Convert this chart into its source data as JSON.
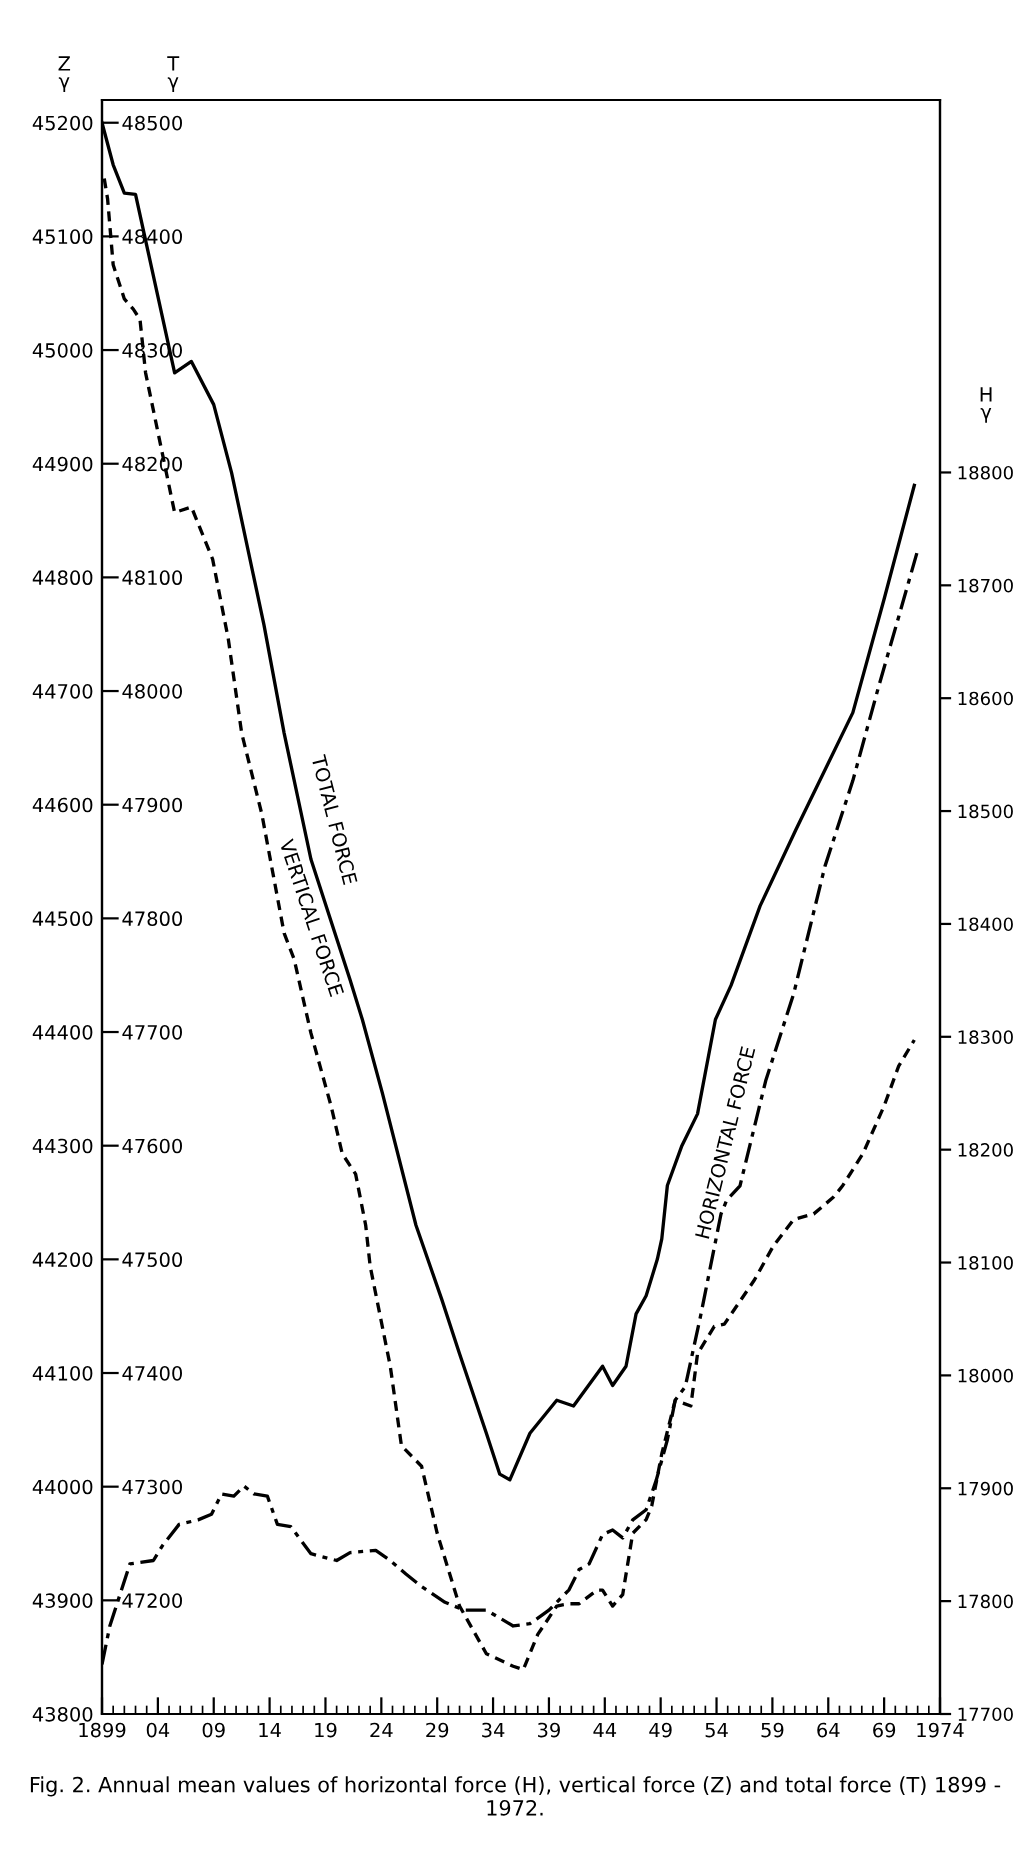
{
  "chart_data": {
    "type": "line",
    "title": "Fig. 2. Annual mean values of horizontal force (H), vertical force (Z) and total force (T) 1899 - 1972.",
    "ylabel": "Z\nγ",
    "y2label": "T\nγ",
    "y3label": "H\nγ",
    "xlim": [
      1899,
      1974
    ],
    "xticks": [
      {
        "value": 1899,
        "label": "1899"
      },
      {
        "value": 1904,
        "label": "04"
      },
      {
        "value": 1909,
        "label": "09"
      },
      {
        "value": 1914,
        "label": "14"
      },
      {
        "value": 1919,
        "label": "19"
      },
      {
        "value": 1924,
        "label": "24"
      },
      {
        "value": 1929,
        "label": "29"
      },
      {
        "value": 1934,
        "label": "34"
      },
      {
        "value": 1939,
        "label": "39"
      },
      {
        "value": 1944,
        "label": "44"
      },
      {
        "value": 1949,
        "label": "49"
      },
      {
        "value": 1954,
        "label": "54"
      },
      {
        "value": 1959,
        "label": "59"
      },
      {
        "value": 1964,
        "label": "64"
      },
      {
        "value": 1969,
        "label": "69"
      },
      {
        "value": 1974,
        "label": "1974"
      }
    ],
    "ylim": [
      43800,
      45220
    ],
    "yticks": [
      43800,
      43900,
      44000,
      44100,
      44200,
      44300,
      44400,
      44500,
      44600,
      44700,
      44800,
      44900,
      45000,
      45100,
      45200
    ],
    "y2lim": [
      47100,
      48520
    ],
    "y2ticks": [
      47200,
      47300,
      47400,
      47500,
      47600,
      47700,
      47800,
      47900,
      48000,
      48100,
      48200,
      48300,
      48400,
      48500
    ],
    "y3lim": [
      17700,
      19130
    ],
    "y3ticks": [
      17700,
      17800,
      17900,
      18000,
      18100,
      18200,
      18300,
      18400,
      18500,
      18600,
      18700,
      18800
    ],
    "grid": false,
    "legend": false,
    "marker": "none",
    "series": [
      {
        "name": "TOTAL FORCE",
        "axis": "y2",
        "color": "#000000",
        "line_style": "solid",
        "x": [
          1899,
          1900,
          1901,
          1902,
          1905.5,
          1907,
          1909,
          1910.6,
          1913.5,
          1915.3,
          1917.7,
          1921.2,
          1922.3,
          1924.1,
          1927.1,
          1929.4,
          1931,
          1933.4,
          1934.6,
          1935.5,
          1937.3,
          1939.7,
          1941.2,
          1943.8,
          1944.7,
          1945.9,
          1946.8,
          1947.7,
          1948.7,
          1949.1,
          1949.6,
          1950.9,
          1952.3,
          1953.9,
          1955.3,
          1957.9,
          1961.1,
          1966.2,
          1969,
          1971.7
        ],
        "values": [
          48500,
          48463,
          48438,
          48437,
          48280,
          48290,
          48252,
          48192,
          48058,
          47963,
          47852,
          47746,
          47711,
          47646,
          47530,
          47465,
          47417,
          47347,
          47311,
          47306,
          47347,
          47376,
          47371,
          47406,
          47389,
          47406,
          47452,
          47468,
          47500,
          47518,
          47565,
          47600,
          47628,
          47711,
          47741,
          47811,
          47878,
          47981,
          48081,
          48181
        ]
      },
      {
        "name": "VERTICAL FORCE",
        "axis": "y",
        "color": "#000000",
        "line_style": "dashed",
        "x": [
          1899.2,
          1899.5,
          1900,
          1901,
          1901.8,
          1902.4,
          1902.9,
          1905.5,
          1907,
          1908.9,
          1910.3,
          1911.5,
          1913.3,
          1915.3,
          1916.2,
          1917.7,
          1919.5,
          1920.5,
          1921.7,
          1922.6,
          1923,
          1924.8,
          1925.8,
          1927.6,
          1929,
          1931,
          1933.4,
          1935.8,
          1936.7,
          1938,
          1939.7,
          1940.8,
          1941.7,
          1943.3,
          1943.8,
          1944.7,
          1945.6,
          1946.5,
          1947.7,
          1948.2,
          1949.1,
          1950.3,
          1951.7,
          1952.3,
          1953.8,
          1954.7,
          1957.4,
          1959.1,
          1960.9,
          1962.7,
          1964.5,
          1965.3,
          1967.1,
          1969,
          1970.3,
          1971.7
        ],
        "values": [
          45151,
          45133,
          45075,
          45045,
          45036,
          45027,
          44980,
          44857,
          44862,
          44816,
          44746,
          44663,
          44592,
          44487,
          44464,
          44399,
          44335,
          44293,
          44275,
          44230,
          44194,
          44106,
          44036,
          44018,
          43959,
          43895,
          43853,
          43842,
          43839,
          43870,
          43895,
          43897,
          43897,
          43909,
          43909,
          43895,
          43905,
          43959,
          43971,
          43983,
          44029,
          44076,
          44071,
          44117,
          44141,
          44143,
          44182,
          44212,
          44235,
          44240,
          44255,
          44265,
          44293,
          44335,
          44370,
          44393
        ]
      },
      {
        "name": "HORIZONTAL FORCE",
        "axis": "y3",
        "color": "#000000",
        "line_style": "dashdot",
        "x": [
          1899,
          1899.7,
          1901.5,
          1903.6,
          1904.4,
          1905.9,
          1907.6,
          1908.8,
          1909.7,
          1910.8,
          1911.7,
          1912.6,
          1913.8,
          1914.7,
          1915.9,
          1917.7,
          1920,
          1921.2,
          1923.5,
          1924.8,
          1926.2,
          1927.6,
          1929.7,
          1931.4,
          1933.4,
          1935.8,
          1937.3,
          1939,
          1940.8,
          1941.7,
          1942.6,
          1943.8,
          1944.7,
          1945.6,
          1946.5,
          1947.7,
          1948.6,
          1949.6,
          1950.3,
          1951.2,
          1952.6,
          1954.4,
          1954.9,
          1956.1,
          1958.4,
          1960.9,
          1963.7,
          1966.2,
          1968.5,
          1970.3,
          1972
        ],
        "values": [
          17744,
          17778,
          17833,
          17836,
          17849,
          17868,
          17872,
          17877,
          17895,
          17893,
          17902,
          17895,
          17893,
          17868,
          17866,
          17842,
          17836,
          17843,
          17845,
          17836,
          17824,
          17813,
          17799,
          17792,
          17792,
          17778,
          17780,
          17792,
          17810,
          17828,
          17833,
          17859,
          17863,
          17856,
          17872,
          17881,
          17907,
          17943,
          17978,
          17990,
          18054,
          18143,
          18155,
          18168,
          18261,
          18338,
          18451,
          18527,
          18610,
          18672,
          18731
        ]
      }
    ]
  }
}
